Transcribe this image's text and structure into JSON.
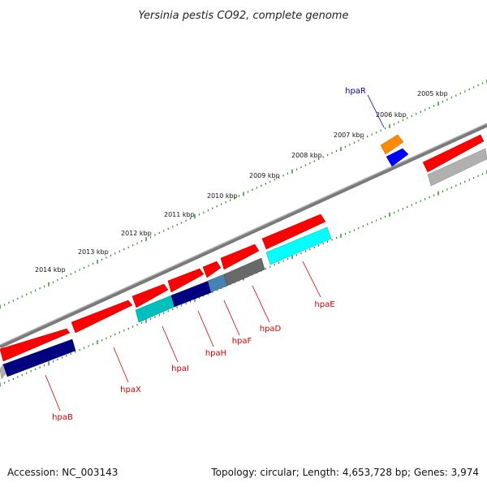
{
  "title": "Yersinia pestis CO92, complete genome",
  "footer": {
    "accession": "Accession: NC_003143",
    "summary": "Topology: circular; Length: 4,653,728 bp; Genes: 3,974"
  },
  "scale_labels": [
    "2005 kbp",
    "2006 kbp",
    "2007 kbp",
    "2008 kbp",
    "2009 kbp",
    "2010 kbp",
    "2011 kbp",
    "2012 kbp",
    "2013 kbp",
    "2014 kbp"
  ],
  "genes": [
    {
      "name": "hpaR",
      "color": "#0000aa"
    },
    {
      "name": "hpaE",
      "color": "#cc0000"
    },
    {
      "name": "hpaD",
      "color": "#cc0000"
    },
    {
      "name": "hpaF",
      "color": "#cc0000"
    },
    {
      "name": "hpaH",
      "color": "#cc0000"
    },
    {
      "name": "hpaI",
      "color": "#cc0000"
    },
    {
      "name": "hpaX",
      "color": "#cc0000"
    },
    {
      "name": "hpaB",
      "color": "#cc0000"
    }
  ],
  "colors": {
    "backbone": "#808080",
    "ticks": "#228b22",
    "feature_red": "#ff0000",
    "feature_navy": "#000080",
    "feature_cyan": "#00ffff",
    "feature_teal": "#00bfbf",
    "feature_grey": "#696969",
    "feature_steel": "#4682b4",
    "feature_orange": "#ff8c00",
    "feature_blue": "#0000ff",
    "feature_lightgrey": "#b0b0b0"
  }
}
